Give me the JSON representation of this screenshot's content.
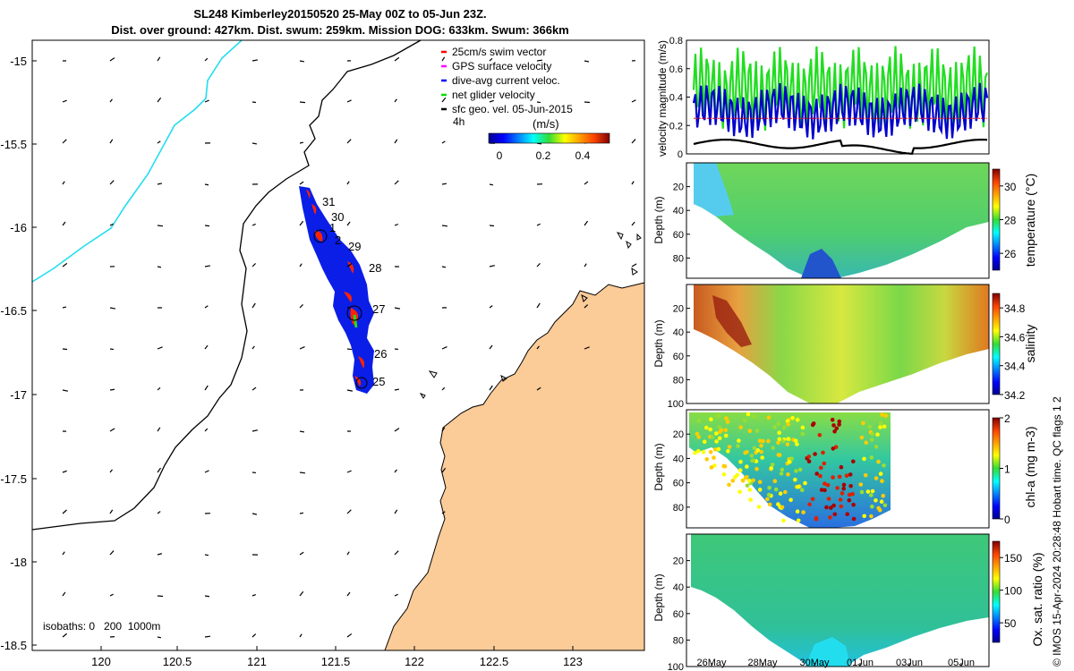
{
  "header": {
    "title_line1": "SL248 Kimberley20150520 25-May 00Z to 05-Jun 23Z.",
    "title_line2": "Dist. over ground: 427km. Dist. swum: 259km. Mission DOG: 633km. Swum: 366km"
  },
  "map": {
    "lon_ticks": [
      "120",
      "120.5",
      "121",
      "121.5",
      "122",
      "122.5",
      "123"
    ],
    "lat_ticks": [
      "-15",
      "-15.5",
      "-16",
      "-16.5",
      "-17",
      "-17.5",
      "-18",
      "-18.5"
    ],
    "isobaths_label": "isobaths: 0   200  1000m",
    "legend": [
      {
        "label": "25cm/s swim vector",
        "color": "#ff0000"
      },
      {
        "label": "GPS surface velocity",
        "color": "#ff00ff"
      },
      {
        "label": "dive-avg current veloc.",
        "color": "#0000ff"
      },
      {
        "label": "net glider velocity",
        "color": "#00dd00"
      },
      {
        "label": "sfc geo. vel. 05-Jun-2015",
        "color": "#000000"
      }
    ],
    "legend_4h": "4h",
    "colorbar_title": "(m/s)",
    "colorbar_ticks": [
      "0",
      "0.2",
      "0.4"
    ],
    "day_labels": [
      "31",
      "30",
      "1",
      "2",
      "29",
      "28",
      "27",
      "26",
      "25"
    ],
    "land_color": "#fbcb98",
    "track_color": "#0000ff"
  },
  "chart_data": [
    {
      "type": "line",
      "title": "",
      "ylabel": "velocity magnitude (m/s)",
      "ylim": [
        0,
        0.8
      ],
      "y_ticks": [
        "0",
        "0.2",
        "0.4",
        "0.6",
        "0.8"
      ],
      "series": [
        {
          "name": "net glider velocity",
          "color": "#22dd22",
          "mean": 0.45,
          "amplitude": 0.25
        },
        {
          "name": "dive-avg current veloc.",
          "color": "#0000cc",
          "mean": 0.3,
          "amplitude": 0.15
        },
        {
          "name": "25cm/s swim vector",
          "color": "#ff0000",
          "mean": 0.25,
          "amplitude": 0.0
        },
        {
          "name": "sfc geo. vel.",
          "color": "#000000",
          "mean": 0.07,
          "amplitude": 0.03
        }
      ]
    },
    {
      "type": "heatmap",
      "ylabel": "Depth (m)",
      "y_ticks": [
        "20",
        "40",
        "60",
        "80"
      ],
      "colorbar_label": "temperature (°C)",
      "colorbar_ticks": [
        "30",
        "28",
        "26"
      ],
      "range": [
        25,
        31
      ]
    },
    {
      "type": "heatmap",
      "ylabel": "Depth (m)",
      "y_ticks": [
        "20",
        "40",
        "60",
        "80",
        "100"
      ],
      "colorbar_label": "salinity",
      "colorbar_ticks": [
        "34.8",
        "34.6",
        "34.4",
        "34.2"
      ],
      "range": [
        34.2,
        34.9
      ]
    },
    {
      "type": "scatter",
      "ylabel": "Depth (m)",
      "y_ticks": [
        "20",
        "40",
        "60",
        "80"
      ],
      "colorbar_label": "chl-a (mg m-3)",
      "colorbar_ticks": [
        "2",
        "1",
        "0"
      ],
      "range": [
        0,
        2
      ]
    },
    {
      "type": "heatmap",
      "ylabel": "Depth (m)",
      "y_ticks": [
        "20",
        "40",
        "60",
        "80",
        "100"
      ],
      "colorbar_label": "Ox. sat. ratio (%)",
      "colorbar_ticks": [
        "150",
        "100",
        "50"
      ],
      "range": [
        20,
        175
      ],
      "x_ticks": [
        "26May",
        "28May",
        "30May",
        "01Jun",
        "03Jun",
        "05Jun"
      ]
    }
  ],
  "footer": {
    "credit": "© IMOS 15-Apr-2024 20:28:48 Hobart time. QC flags 1  2"
  }
}
